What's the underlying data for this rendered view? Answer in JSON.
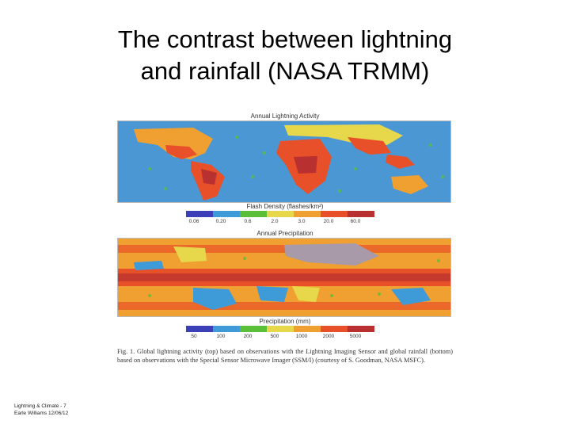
{
  "slide": {
    "title_line1": "The contrast between lightning",
    "title_line2": "and rainfall (NASA TRMM)"
  },
  "lightning": {
    "title": "Annual Lightning Activity",
    "axis_label": "Flash Density (flashes/km²)",
    "ticks": [
      "0.06",
      "0.20",
      "0.6",
      "2.0",
      "3.0",
      "20.0",
      "60.0"
    ],
    "colors": [
      "#3b3fb8",
      "#3f9ad8",
      "#5cbf3a",
      "#e6d84a",
      "#f0a030",
      "#e8502a",
      "#b83030"
    ]
  },
  "precipitation": {
    "title": "Annual Precipitation",
    "axis_label": "Precipitation (mm)",
    "ticks": [
      "50",
      "100",
      "200",
      "500",
      "1000",
      "2000",
      "5000"
    ],
    "colors": [
      "#3b3fb8",
      "#3f9ad8",
      "#5cbf3a",
      "#e6d84a",
      "#f0a030",
      "#e8502a",
      "#b83030"
    ]
  },
  "caption": "Fig. 1. Global lightning activity (top) based on observations with the Lightning Imaging Sensor and global rainfall (bottom) based on observations with the Special Sensor Microwave Imager (SSM/I) (courtesy of S. Goodman, NASA MSFC).",
  "footer": {
    "line1": "Lightning & Climate - 7",
    "line2": "Earle Williams 12/06/12"
  }
}
